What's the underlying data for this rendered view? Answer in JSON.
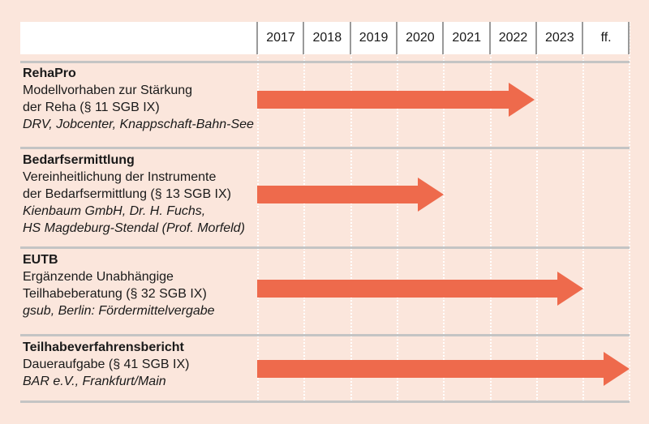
{
  "timeline": {
    "years": [
      "2017",
      "2018",
      "2019",
      "2020",
      "2021",
      "2022",
      "2023",
      "ff."
    ],
    "arrow_color": "#ee6a4c",
    "rows": [
      {
        "title": "RehaPro",
        "lines": [
          "Modellvorhaben zur Stärkung",
          "der Reha (§ 11 SGB IX)"
        ],
        "partners": [
          "DRV, Jobcenter, Knappschaft-Bahn-See"
        ],
        "start": "2017",
        "end": "2022"
      },
      {
        "title": "Bedarfsermittlung",
        "lines": [
          "Vereinheitlichung der Instrumente",
          "der Bedarfsermittlung (§ 13 SGB IX)"
        ],
        "partners": [
          "Kienbaum GmbH, Dr. H. Fuchs,",
          "HS Magdeburg-Stendal (Prof. Morfeld)"
        ],
        "start": "2017",
        "end": "2020"
      },
      {
        "title": "EUTB",
        "lines": [
          "Ergänzende Unabhängige",
          "Teilhabeberatung (§ 32 SGB IX)"
        ],
        "partners": [
          "gsub, Berlin: Fördermittelvergabe"
        ],
        "start": "2017",
        "end": "2023"
      },
      {
        "title": "Teilhabeverfahrensbericht",
        "lines": [
          "Daueraufgabe (§ 41 SGB IX)"
        ],
        "partners": [
          "BAR e.V., Frankfurt/Main"
        ],
        "start": "2017",
        "end": "ff."
      }
    ]
  }
}
